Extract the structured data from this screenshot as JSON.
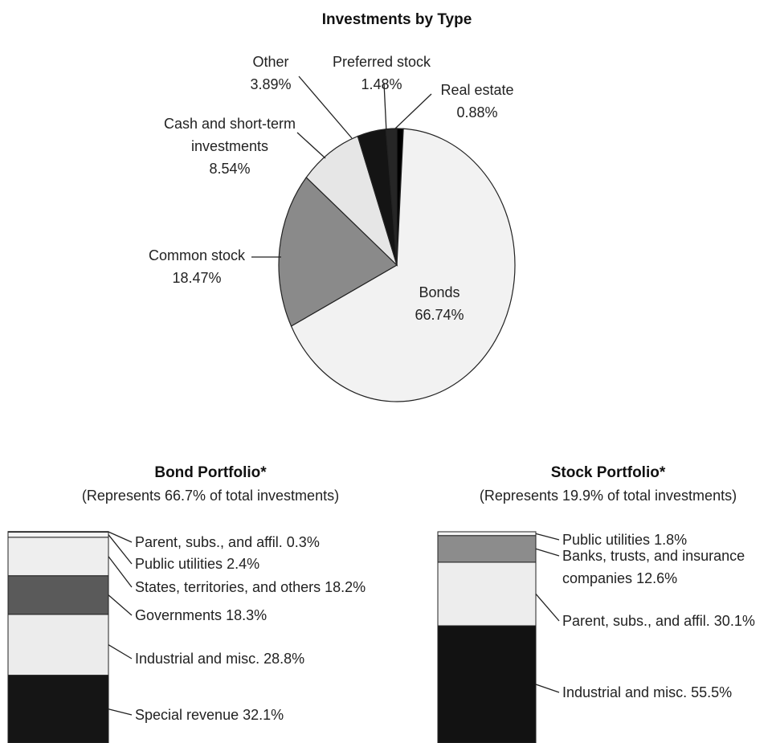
{
  "chart_data": [
    {
      "type": "pie",
      "title": "Investments by Type",
      "categories": [
        "Real estate",
        "Bonds",
        "Common stock",
        "Cash and short-term investments",
        "Other",
        "Preferred stock"
      ],
      "values": [
        0.88,
        66.74,
        18.47,
        8.54,
        3.89,
        1.48
      ],
      "value_labels": [
        "0.88%",
        "66.74%",
        "18.47%",
        "8.54%",
        "3.89%",
        "1.48%"
      ],
      "colors": [
        "#000000",
        "#f2f2f2",
        "#8a8a8a",
        "#e6e6e6",
        "#141414",
        "#262626"
      ]
    },
    {
      "type": "stacked_bar",
      "title": "Bond Portfolio*",
      "subtitle": "(Represents 66.7% of total investments)",
      "ylim": [
        0,
        100
      ],
      "series": [
        {
          "name": "Special revenue",
          "color": "#151515",
          "values": [
            32.1
          ],
          "value_labels": [
            "32.1%"
          ]
        },
        {
          "name": "Industrial and misc.",
          "color": "#ececec",
          "values": [
            28.8
          ],
          "value_labels": [
            "28.8%"
          ]
        },
        {
          "name": "Governments",
          "color": "#5a5a5a",
          "values": [
            18.3
          ],
          "value_labels": [
            "18.3%"
          ]
        },
        {
          "name": "States, territories, and others",
          "color": "#eeeeee",
          "values": [
            18.2
          ],
          "value_labels": [
            "18.2%"
          ]
        },
        {
          "name": "Public utilities",
          "color": "#f4f4f4",
          "values": [
            2.4
          ],
          "value_labels": [
            "2.4%"
          ]
        },
        {
          "name": "Parent, subs., and affil.",
          "color": "#333333",
          "values": [
            0.3
          ],
          "value_labels": [
            "0.3%"
          ]
        }
      ]
    },
    {
      "type": "stacked_bar",
      "title": "Stock Portfolio*",
      "subtitle": "(Represents 19.9% of total investments)",
      "ylim": [
        0,
        100
      ],
      "series": [
        {
          "name": "Industrial and misc.",
          "color": "#121212",
          "values": [
            55.5
          ],
          "value_labels": [
            "55.5%"
          ]
        },
        {
          "name": "Parent, subs., and affil.",
          "color": "#ededed",
          "values": [
            30.1
          ],
          "value_labels": [
            "30.1%"
          ]
        },
        {
          "name": "Banks, trusts, and insurance companies",
          "color": "#8c8c8c",
          "values": [
            12.6
          ],
          "value_labels": [
            "12.6%"
          ]
        },
        {
          "name": "Public utilities",
          "color": "#f4f4f4",
          "values": [
            1.8
          ],
          "value_labels": [
            "1.8%"
          ]
        }
      ]
    }
  ]
}
